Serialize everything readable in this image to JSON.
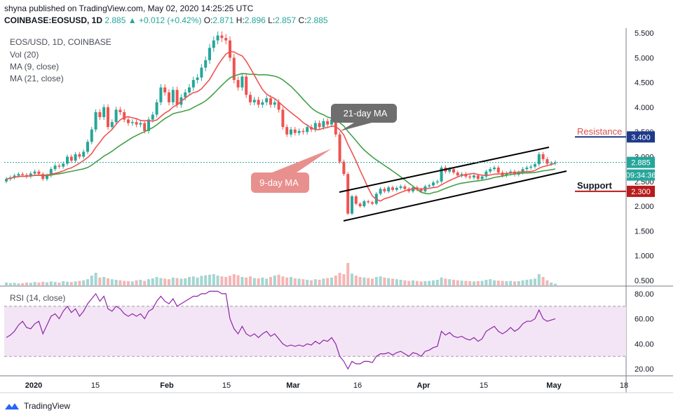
{
  "header": {
    "line1": "shyna published on TradingView.com, May 02, 2020 14:25:25 UTC",
    "symbol": "COINBASE:EOSUSD, 1D",
    "price": "2.885",
    "change": "+0.012 (+0.42%)",
    "o_label": "O:",
    "o": "2.871",
    "h_label": "H:",
    "h": "2.896",
    "l_label": "L:",
    "l": "2.857",
    "c_label": "C:",
    "c": "2.885"
  },
  "legend": {
    "title": "EOS/USD, 1D, COINBASE",
    "vol": "Vol (20)",
    "ma9": "MA (9, close)",
    "ma21": "MA (21, close)",
    "rsi": "RSI (14, close)"
  },
  "annotations": {
    "ma21_label": "21-day MA",
    "ma9_label": "9-day MA",
    "resistance_label": "Resistance",
    "support_label": "Support"
  },
  "price_tags": {
    "resistance": "3.400",
    "current": "2.885",
    "countdown": "09:34:36",
    "support": "2.300"
  },
  "footer": {
    "brand": "TradingView"
  },
  "colors": {
    "up": "#26a69a",
    "down": "#ef5350",
    "ma9": "#ef5350",
    "ma21": "#43a047",
    "rsi": "#8e24aa",
    "rsi_band": "#f3e5f5",
    "resistance": "#1e3a8a",
    "support": "#b71c1c"
  },
  "chart_data": {
    "type": "candlestick",
    "x_ticks": [
      "2020",
      "15",
      "Feb",
      "15",
      "Mar",
      "16",
      "Apr",
      "15",
      "May",
      "18"
    ],
    "y_ticks": [
      "5.500",
      "5.000",
      "4.500",
      "4.000",
      "3.500",
      "3.000",
      "2.500",
      "2.000",
      "1.500",
      "1.000",
      "0.500"
    ],
    "rsi_ticks": [
      "80.00",
      "60.00",
      "40.00",
      "20.00"
    ],
    "ylim": [
      0.4,
      5.6
    ],
    "rsi_ylim": [
      15,
      85
    ],
    "resistance": 3.4,
    "support": 2.3,
    "close": [
      2.55,
      2.58,
      2.62,
      2.65,
      2.63,
      2.6,
      2.66,
      2.7,
      2.65,
      2.55,
      2.62,
      2.75,
      2.82,
      2.8,
      2.86,
      3.0,
      2.92,
      3.05,
      3.0,
      3.1,
      3.3,
      3.55,
      3.9,
      3.8,
      4.0,
      3.6,
      3.7,
      3.95,
      3.9,
      3.75,
      3.68,
      3.7,
      3.65,
      3.68,
      3.52,
      3.75,
      3.85,
      4.1,
      4.4,
      4.3,
      4.1,
      4.35,
      4.05,
      4.2,
      4.3,
      4.4,
      4.55,
      4.6,
      4.8,
      4.95,
      5.2,
      5.35,
      5.45,
      5.4,
      5.35,
      5.0,
      4.55,
      4.4,
      4.62,
      4.25,
      4.1,
      4.15,
      4.05,
      4.1,
      4.18,
      4.05,
      4.1,
      3.95,
      3.6,
      3.45,
      3.55,
      3.48,
      3.52,
      3.5,
      3.6,
      3.55,
      3.68,
      3.6,
      3.72,
      3.65,
      3.75,
      3.45,
      2.9,
      2.65,
      1.85,
      2.2,
      2.05,
      2.0,
      2.1,
      2.08,
      2.05,
      2.25,
      2.35,
      2.3,
      2.38,
      2.33,
      2.37,
      2.4,
      2.35,
      2.3,
      2.38,
      2.34,
      2.3,
      2.4,
      2.42,
      2.48,
      2.5,
      2.78,
      2.7,
      2.75,
      2.68,
      2.62,
      2.65,
      2.6,
      2.58,
      2.62,
      2.55,
      2.6,
      2.7,
      2.75,
      2.78,
      2.68,
      2.62,
      2.66,
      2.7,
      2.64,
      2.68,
      2.75,
      2.78,
      2.8,
      2.85,
      3.05,
      2.95,
      2.86,
      2.87,
      2.885
    ],
    "volume": [
      0.1,
      0.08,
      0.09,
      0.07,
      0.08,
      0.1,
      0.09,
      0.12,
      0.1,
      0.13,
      0.11,
      0.14,
      0.12,
      0.1,
      0.15,
      0.13,
      0.12,
      0.14,
      0.16,
      0.18,
      0.22,
      0.35,
      0.45,
      0.28,
      0.3,
      0.25,
      0.22,
      0.2,
      0.18,
      0.16,
      0.15,
      0.14,
      0.18,
      0.2,
      0.16,
      0.22,
      0.25,
      0.3,
      0.26,
      0.24,
      0.22,
      0.28,
      0.26,
      0.24,
      0.25,
      0.3,
      0.32,
      0.28,
      0.34,
      0.36,
      0.38,
      0.4,
      0.35,
      0.32,
      0.3,
      0.34,
      0.4,
      0.36,
      0.3,
      0.28,
      0.32,
      0.26,
      0.25,
      0.28,
      0.24,
      0.3,
      0.35,
      0.38,
      0.32,
      0.28,
      0.3,
      0.25,
      0.24,
      0.22,
      0.2,
      0.18,
      0.22,
      0.2,
      0.24,
      0.26,
      0.28,
      0.35,
      0.45,
      0.4,
      0.8,
      0.42,
      0.35,
      0.3,
      0.28,
      0.26,
      0.24,
      0.3,
      0.32,
      0.28,
      0.26,
      0.24,
      0.22,
      0.2,
      0.18,
      0.16,
      0.18,
      0.16,
      0.14,
      0.15,
      0.16,
      0.18,
      0.2,
      0.28,
      0.24,
      0.22,
      0.2,
      0.18,
      0.17,
      0.16,
      0.15,
      0.14,
      0.15,
      0.16,
      0.2,
      0.22,
      0.18,
      0.17,
      0.16,
      0.15,
      0.16,
      0.14,
      0.15,
      0.18,
      0.2,
      0.22,
      0.24,
      0.4,
      0.3,
      0.18,
      0.1,
      0.06
    ],
    "rsi": [
      45,
      47,
      50,
      55,
      58,
      53,
      52,
      56,
      58,
      48,
      55,
      62,
      64,
      60,
      66,
      70,
      65,
      68,
      62,
      66,
      72,
      76,
      80,
      74,
      78,
      68,
      66,
      70,
      68,
      64,
      62,
      64,
      62,
      64,
      60,
      66,
      68,
      74,
      78,
      74,
      72,
      76,
      70,
      72,
      74,
      76,
      78,
      78,
      80,
      80,
      82,
      82,
      82,
      80,
      80,
      60,
      52,
      48,
      54,
      48,
      46,
      48,
      45,
      48,
      50,
      46,
      48,
      44,
      40,
      38,
      39,
      38,
      39,
      38,
      40,
      39,
      42,
      40,
      43,
      42,
      45,
      40,
      30,
      26,
      20,
      26,
      24,
      24,
      26,
      26,
      25,
      30,
      32,
      32,
      33,
      31,
      33,
      34,
      32,
      30,
      33,
      32,
      30,
      34,
      35,
      37,
      38,
      50,
      47,
      49,
      46,
      45,
      46,
      44,
      43,
      45,
      42,
      44,
      50,
      52,
      54,
      50,
      48,
      50,
      53,
      50,
      52,
      56,
      58,
      58,
      60,
      67,
      60,
      58,
      59,
      60
    ]
  }
}
